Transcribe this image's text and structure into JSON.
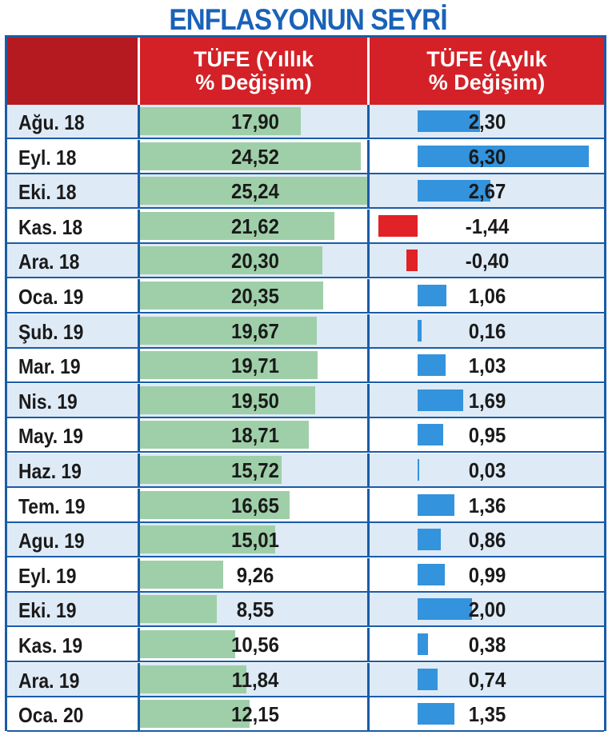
{
  "chart_data": {
    "type": "table",
    "title": "ENFLASYONUN SEYRİ",
    "columns": [
      "",
      "TÜFE (Yıllık % Değişim)",
      "TÜFE (Aylık % Değişim)"
    ],
    "column_header_lines": {
      "annual": [
        "TÜFE (Yıllık",
        "% Değişim)"
      ],
      "monthly": [
        "TÜFE (Aylık",
        "% Değişim)"
      ]
    },
    "categories": [
      "Ağu. 18",
      "Eyl. 18",
      "Eki. 18",
      "Kas. 18",
      "Ara. 18",
      "Oca. 19",
      "Şub. 19",
      "Mar. 19",
      "Nis. 19",
      "May. 19",
      "Haz. 19",
      "Tem. 19",
      "Agu. 19",
      "Eyl. 19",
      "Eki. 19",
      "Kas. 19",
      "Ara. 19",
      "Oca. 20"
    ],
    "series": [
      {
        "name": "TÜFE (Yıllık % Değişim)",
        "values": [
          17.9,
          24.52,
          25.24,
          21.62,
          20.3,
          20.35,
          19.67,
          19.71,
          19.5,
          18.71,
          15.72,
          16.65,
          15.01,
          9.26,
          8.55,
          10.56,
          11.84,
          12.15
        ],
        "labels": [
          "17,90",
          "24,52",
          "25,24",
          "21,62",
          "20,30",
          "20,35",
          "19,67",
          "19,71",
          "19,50",
          "18,71",
          "15,72",
          "16,65",
          "15,01",
          "9,26",
          "8,55",
          "10,56",
          "11,84",
          "12,15"
        ]
      },
      {
        "name": "TÜFE (Aylık % Değişim)",
        "values": [
          2.3,
          6.3,
          2.67,
          -1.44,
          -0.4,
          1.06,
          0.16,
          1.03,
          1.69,
          0.95,
          0.03,
          1.36,
          0.86,
          0.99,
          2.0,
          0.38,
          0.74,
          1.35
        ],
        "labels": [
          "2,30",
          "6,30",
          "2,67",
          "-1,44",
          "-0,40",
          "1,06",
          "0,16",
          "1,03",
          "1,69",
          "0,95",
          "0,03",
          "1,36",
          "0,86",
          "0,99",
          "2,00",
          "0,38",
          "0,74",
          "1,35"
        ]
      }
    ],
    "colors": {
      "title": "#1a62b8",
      "header": "#d32127",
      "annual_bar": "#9fcfa9",
      "monthly_positive": "#3393dd",
      "monthly_negative": "#e12227",
      "grid": "#1a5ca8",
      "row_alt": "#deeaf6"
    }
  }
}
